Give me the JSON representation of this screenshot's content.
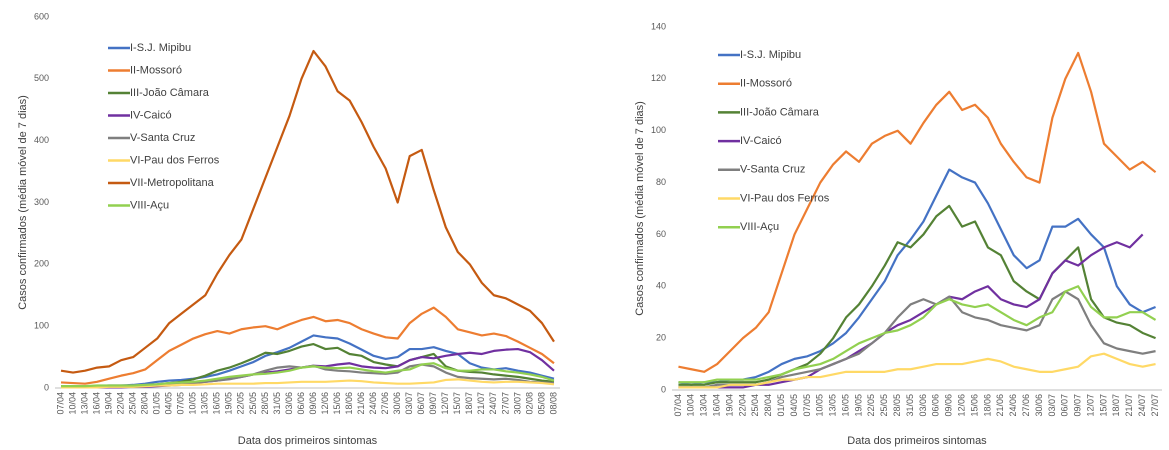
{
  "chart_data": [
    {
      "type": "line",
      "y_label": "Casos confirmados (média móvel de 7 dias)",
      "x_label": "Data dos primeiros sintomas",
      "categories": [
        "07/04",
        "10/04",
        "13/04",
        "16/04",
        "19/04",
        "22/04",
        "25/04",
        "28/04",
        "01/05",
        "04/05",
        "07/05",
        "10/05",
        "13/05",
        "16/05",
        "19/05",
        "22/05",
        "25/05",
        "28/05",
        "31/05",
        "03/06",
        "06/06",
        "09/06",
        "12/06",
        "15/06",
        "18/06",
        "21/06",
        "24/06",
        "27/06",
        "30/06",
        "03/07",
        "06/07",
        "09/07",
        "12/07",
        "15/07",
        "18/07",
        "21/07",
        "24/07",
        "27/07",
        "30/07",
        "02/08",
        "05/08",
        "08/08"
      ],
      "ylim": [
        0,
        600
      ],
      "yticks": [
        0,
        100,
        200,
        300,
        400,
        500,
        600
      ],
      "grid": false,
      "series": [
        {
          "name": "I-S.J. Mipibu",
          "color": "#4472c4",
          "values": [
            3,
            2,
            3,
            3,
            4,
            4,
            5,
            7,
            10,
            12,
            13,
            15,
            18,
            22,
            28,
            35,
            42,
            52,
            58,
            65,
            75,
            85,
            82,
            80,
            72,
            62,
            52,
            47,
            50,
            63,
            63,
            66,
            60,
            55,
            40,
            33,
            30,
            32,
            28,
            25,
            20,
            15
          ]
        },
        {
          "name": "II-Mossoró",
          "color": "#ed7d31",
          "values": [
            9,
            8,
            7,
            10,
            15,
            20,
            24,
            30,
            45,
            60,
            70,
            80,
            87,
            92,
            88,
            95,
            98,
            100,
            95,
            103,
            110,
            115,
            108,
            110,
            105,
            95,
            88,
            82,
            80,
            105,
            120,
            130,
            115,
            95,
            90,
            85,
            88,
            84,
            75,
            65,
            55,
            40
          ]
        },
        {
          "name": "III-João Câmara",
          "color": "#548235",
          "values": [
            2,
            2,
            2,
            3,
            3,
            3,
            3,
            4,
            6,
            8,
            10,
            14,
            20,
            28,
            33,
            40,
            48,
            57,
            55,
            60,
            67,
            71,
            63,
            65,
            55,
            52,
            42,
            38,
            35,
            45,
            50,
            55,
            35,
            28,
            26,
            25,
            22,
            20,
            18,
            15,
            12,
            10
          ]
        },
        {
          "name": "IV-Caicó",
          "color": "#7030a0",
          "values": [
            1,
            1,
            1,
            1,
            1,
            1,
            2,
            2,
            3,
            4,
            5,
            8,
            10,
            12,
            15,
            18,
            22,
            25,
            27,
            30,
            33,
            36,
            35,
            38,
            40,
            35,
            33,
            32,
            35,
            45,
            50,
            48,
            52,
            55,
            57,
            55,
            60,
            62,
            63,
            58,
            45,
            28
          ]
        },
        {
          "name": "V-Santa Cruz",
          "color": "#7f7f7f",
          "values": [
            1,
            1,
            1,
            2,
            2,
            2,
            2,
            3,
            5,
            6,
            7,
            8,
            10,
            12,
            14,
            18,
            22,
            28,
            33,
            35,
            33,
            36,
            30,
            28,
            27,
            25,
            24,
            23,
            25,
            35,
            38,
            35,
            25,
            18,
            16,
            15,
            14,
            15,
            13,
            10,
            9,
            8
          ]
        },
        {
          "name": "VI-Pau dos Ferros",
          "color": "#ffd966",
          "values": [
            1,
            1,
            1,
            1,
            2,
            2,
            2,
            3,
            4,
            4,
            5,
            5,
            6,
            7,
            7,
            7,
            7,
            8,
            8,
            9,
            10,
            10,
            10,
            11,
            12,
            11,
            9,
            8,
            7,
            7,
            8,
            9,
            13,
            14,
            12,
            10,
            9,
            10,
            10,
            9,
            8,
            6
          ]
        },
        {
          "name": "VII-Metropolitana",
          "color": "#c55a11",
          "values": [
            28,
            25,
            28,
            33,
            35,
            45,
            50,
            65,
            80,
            105,
            120,
            135,
            150,
            185,
            215,
            240,
            290,
            340,
            390,
            440,
            500,
            545,
            520,
            480,
            465,
            430,
            390,
            355,
            300,
            375,
            385,
            320,
            260,
            220,
            200,
            170,
            150,
            145,
            135,
            125,
            105,
            75
          ]
        },
        {
          "name": "VIII-Açu",
          "color": "#92d050",
          "values": [
            3,
            3,
            3,
            4,
            4,
            4,
            4,
            5,
            6,
            8,
            9,
            10,
            12,
            15,
            18,
            20,
            22,
            23,
            25,
            28,
            33,
            35,
            33,
            32,
            33,
            30,
            27,
            25,
            28,
            30,
            38,
            40,
            32,
            28,
            28,
            30,
            30,
            27,
            25,
            22,
            18,
            12
          ]
        }
      ]
    },
    {
      "type": "line",
      "y_label": "Casos confirmados (média móvel de 7 dias)",
      "x_label": "Data dos primeiros sintomas",
      "categories": [
        "07/04",
        "10/04",
        "13/04",
        "16/04",
        "19/04",
        "22/04",
        "25/04",
        "28/04",
        "01/05",
        "04/05",
        "07/05",
        "10/05",
        "13/05",
        "16/05",
        "19/05",
        "22/05",
        "25/05",
        "28/05",
        "31/05",
        "03/06",
        "06/06",
        "09/06",
        "12/06",
        "15/06",
        "18/06",
        "21/06",
        "24/06",
        "27/06",
        "30/06",
        "03/07",
        "06/07",
        "09/07",
        "12/07",
        "15/07",
        "18/07",
        "21/07",
        "24/07",
        "27/07"
      ],
      "ylim": [
        0,
        140
      ],
      "yticks": [
        0,
        20,
        40,
        60,
        80,
        100,
        120,
        140
      ],
      "grid": false,
      "series": [
        {
          "name": "I-S.J. Mipibu",
          "color": "#4472c4",
          "values": [
            3,
            2,
            3,
            3,
            4,
            4,
            5,
            7,
            10,
            12,
            13,
            15,
            18,
            22,
            28,
            35,
            42,
            52,
            58,
            65,
            75,
            85,
            82,
            80,
            72,
            62,
            52,
            47,
            50,
            63,
            63,
            66,
            60,
            55,
            40,
            33,
            30,
            32
          ]
        },
        {
          "name": "II-Mossoró",
          "color": "#ed7d31",
          "values": [
            9,
            8,
            7,
            10,
            15,
            20,
            24,
            30,
            45,
            60,
            70,
            80,
            87,
            92,
            88,
            95,
            98,
            100,
            95,
            103,
            110,
            115,
            108,
            110,
            105,
            95,
            88,
            82,
            80,
            105,
            120,
            130,
            115,
            95,
            90,
            85,
            88,
            84
          ]
        },
        {
          "name": "III-João Câmara",
          "color": "#548235",
          "values": [
            2,
            2,
            2,
            3,
            3,
            3,
            3,
            4,
            6,
            8,
            10,
            14,
            20,
            28,
            33,
            40,
            48,
            57,
            55,
            60,
            67,
            71,
            63,
            65,
            55,
            52,
            42,
            38,
            35,
            45,
            50,
            55,
            35,
            28,
            26,
            25,
            22,
            20
          ]
        },
        {
          "name": "IV-Caicó",
          "color": "#7030a0",
          "values": [
            1,
            1,
            1,
            1,
            1,
            1,
            2,
            2,
            3,
            4,
            5,
            8,
            10,
            12,
            15,
            18,
            22,
            25,
            27,
            30,
            33,
            36,
            35,
            38,
            40,
            35,
            33,
            32,
            35,
            45,
            50,
            48,
            52,
            55,
            57,
            55,
            60,
            null
          ]
        },
        {
          "name": "V-Santa Cruz",
          "color": "#7f7f7f",
          "values": [
            1,
            1,
            1,
            2,
            2,
            2,
            2,
            3,
            5,
            6,
            7,
            8,
            10,
            12,
            14,
            18,
            22,
            28,
            33,
            35,
            33,
            36,
            30,
            28,
            27,
            25,
            24,
            23,
            25,
            35,
            38,
            35,
            25,
            18,
            16,
            15,
            14,
            15
          ]
        },
        {
          "name": "VI-Pau dos Ferros",
          "color": "#ffd966",
          "values": [
            1,
            1,
            1,
            1,
            2,
            2,
            2,
            3,
            4,
            4,
            5,
            5,
            6,
            7,
            7,
            7,
            7,
            8,
            8,
            9,
            10,
            10,
            10,
            11,
            12,
            11,
            9,
            8,
            7,
            7,
            8,
            9,
            13,
            14,
            12,
            10,
            9,
            10
          ]
        },
        {
          "name": "VIII-Açu",
          "color": "#92d050",
          "values": [
            3,
            3,
            3,
            4,
            4,
            4,
            4,
            5,
            6,
            8,
            9,
            10,
            12,
            15,
            18,
            20,
            22,
            23,
            25,
            28,
            33,
            35,
            33,
            32,
            33,
            30,
            27,
            25,
            28,
            30,
            38,
            40,
            32,
            28,
            28,
            30,
            30,
            27
          ]
        }
      ]
    }
  ]
}
